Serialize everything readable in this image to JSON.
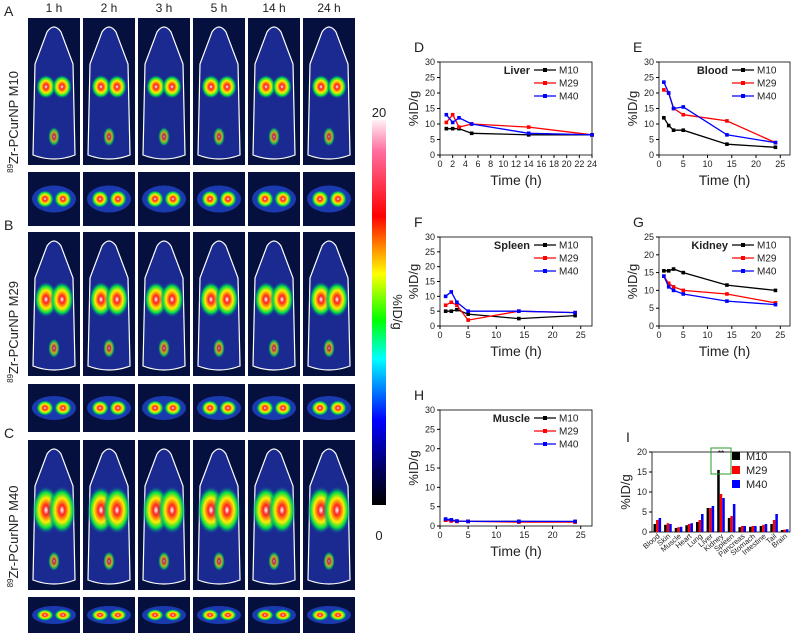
{
  "image_panels": {
    "labels": [
      "A",
      "B",
      "C"
    ],
    "time_points": [
      "1 h",
      "2 h",
      "3 h",
      "5 h",
      "14 h",
      "24 h"
    ],
    "row_labels": [
      {
        "superscript": "89",
        "text": "Zr-PCurNP M10"
      },
      {
        "superscript": "89",
        "text": "Zr-PCurNP M29"
      },
      {
        "superscript": "89",
        "text": "Zr-PCurNP M40"
      }
    ]
  },
  "colorbar": {
    "max": 20,
    "min": 0,
    "label": "%ID/g"
  },
  "chart_data": [
    {
      "type": "line",
      "panel": "D",
      "title": "Liver",
      "xlabel": "Time (h)",
      "ylabel": "%ID/g",
      "x": [
        1,
        2,
        3,
        5,
        14,
        24
      ],
      "xlim": [
        0,
        24
      ],
      "xticks": [
        0,
        2,
        4,
        6,
        8,
        10,
        12,
        14,
        16,
        18,
        20,
        22,
        24
      ],
      "ylim": [
        0,
        30
      ],
      "yticks": [
        0,
        5,
        10,
        15,
        20,
        25,
        30
      ],
      "legend": "upper right",
      "series": [
        {
          "name": "M10",
          "color": "#000000",
          "values": [
            8.5,
            8.5,
            8.5,
            7,
            6.5,
            6.5
          ]
        },
        {
          "name": "M29",
          "color": "#ff0000",
          "values": [
            10.5,
            13,
            9,
            10,
            9,
            6.5
          ]
        },
        {
          "name": "M40",
          "color": "#0000ff",
          "values": [
            13,
            10.5,
            12,
            10,
            7,
            6.5
          ]
        }
      ]
    },
    {
      "type": "line",
      "panel": "E",
      "title": "Blood",
      "xlabel": "Time (h)",
      "ylabel": "%ID/g",
      "x": [
        1,
        2,
        3,
        5,
        14,
        24
      ],
      "xlim": [
        0,
        27
      ],
      "xticks": [
        0,
        5,
        10,
        15,
        20,
        25
      ],
      "ylim": [
        0,
        30
      ],
      "yticks": [
        0,
        5,
        10,
        15,
        20,
        25,
        30
      ],
      "legend": "upper right",
      "series": [
        {
          "name": "M10",
          "color": "#000000",
          "values": [
            12,
            9.5,
            8,
            8,
            3.5,
            2.5
          ]
        },
        {
          "name": "M29",
          "color": "#ff0000",
          "values": [
            21,
            20,
            15,
            13,
            11,
            4
          ]
        },
        {
          "name": "M40",
          "color": "#0000ff",
          "values": [
            23.5,
            20,
            15,
            15.5,
            6.5,
            4
          ]
        }
      ]
    },
    {
      "type": "line",
      "panel": "F",
      "title": "Spleen",
      "xlabel": "Time (h)",
      "ylabel": "%ID/g",
      "x": [
        1,
        2,
        3,
        5,
        14,
        24
      ],
      "xlim": [
        0,
        27
      ],
      "xticks": [
        0,
        5,
        10,
        15,
        20,
        25
      ],
      "ylim": [
        0,
        30
      ],
      "yticks": [
        0,
        5,
        10,
        15,
        20,
        25,
        30
      ],
      "legend": "upper right",
      "series": [
        {
          "name": "M10",
          "color": "#000000",
          "values": [
            5,
            5,
            5.5,
            4,
            2.5,
            3.5
          ]
        },
        {
          "name": "M29",
          "color": "#ff0000",
          "values": [
            7,
            8,
            7,
            2,
            5,
            4.5
          ]
        },
        {
          "name": "M40",
          "color": "#0000ff",
          "values": [
            10,
            11.5,
            8,
            5,
            5,
            4.5
          ]
        }
      ]
    },
    {
      "type": "line",
      "panel": "G",
      "title": "Kidney",
      "xlabel": "Time (h)",
      "ylabel": "%ID/g",
      "x": [
        1,
        2,
        3,
        5,
        14,
        24
      ],
      "xlim": [
        0,
        27
      ],
      "xticks": [
        0,
        5,
        10,
        15,
        20,
        25
      ],
      "ylim": [
        0,
        25
      ],
      "yticks": [
        0,
        5,
        10,
        15,
        20,
        25
      ],
      "legend": "upper right",
      "series": [
        {
          "name": "M10",
          "color": "#000000",
          "values": [
            15.5,
            15.5,
            16,
            15,
            11.5,
            10
          ]
        },
        {
          "name": "M29",
          "color": "#ff0000",
          "values": [
            14,
            12,
            11,
            10,
            9,
            6.5
          ]
        },
        {
          "name": "M40",
          "color": "#0000ff",
          "values": [
            14,
            11,
            10,
            9,
            7,
            6
          ]
        }
      ]
    },
    {
      "type": "line",
      "panel": "H",
      "title": "Muscle",
      "xlabel": "Time (h)",
      "ylabel": "%ID/g",
      "x": [
        1,
        2,
        3,
        5,
        14,
        24
      ],
      "xlim": [
        0,
        27
      ],
      "xticks": [
        0,
        5,
        10,
        15,
        20,
        25
      ],
      "ylim": [
        0,
        30
      ],
      "yticks": [
        0,
        5,
        10,
        15,
        20,
        25,
        30
      ],
      "legend": "upper right",
      "series": [
        {
          "name": "M10",
          "color": "#000000",
          "values": [
            1.5,
            1.5,
            1.2,
            1.2,
            1.2,
            1.1
          ]
        },
        {
          "name": "M29",
          "color": "#ff0000",
          "values": [
            1.5,
            1.3,
            1.2,
            1.2,
            1,
            1
          ]
        },
        {
          "name": "M40",
          "color": "#0000ff",
          "values": [
            1.8,
            1.6,
            1.3,
            1.2,
            1.2,
            1.2
          ]
        }
      ]
    },
    {
      "type": "bar",
      "panel": "I",
      "ylabel": "%ID/g",
      "annotation": "**",
      "categories": [
        "Blood",
        "Skin",
        "Muscle",
        "Heart",
        "Lung",
        "Liver",
        "Kidney",
        "Spleen",
        "Pancreas",
        "Stomach",
        "Intestine",
        "Tail",
        "Brain"
      ],
      "ylim": [
        0,
        20
      ],
      "yticks": [
        0,
        5,
        10,
        15,
        20
      ],
      "legend": "upper right",
      "series": [
        {
          "name": "M10",
          "color": "#000000",
          "values": [
            2.0,
            1.8,
            1.0,
            1.7,
            2.5,
            6.0,
            15.5,
            3.5,
            1.2,
            1.3,
            1.5,
            2.0,
            0.5
          ]
        },
        {
          "name": "M29",
          "color": "#ff0000",
          "values": [
            3.0,
            2.2,
            1.2,
            2.0,
            3.0,
            6.0,
            9.5,
            4.0,
            1.5,
            1.5,
            1.8,
            3.0,
            0.6
          ]
        },
        {
          "name": "M40",
          "color": "#0000ff",
          "values": [
            3.5,
            2.0,
            1.3,
            2.2,
            4.5,
            6.5,
            8.5,
            7.0,
            1.5,
            1.5,
            2.0,
            4.5,
            0.7
          ]
        }
      ]
    }
  ]
}
